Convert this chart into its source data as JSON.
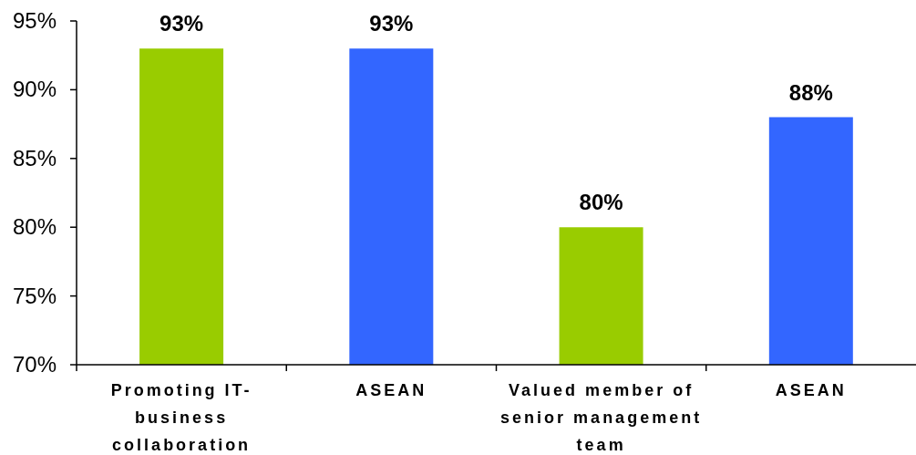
{
  "chart_data": {
    "type": "bar",
    "categories": [
      "Promoting IT-business collaboration",
      "ASEAN",
      "Valued member of senior management team",
      "ASEAN"
    ],
    "values": [
      93,
      93,
      80,
      88
    ],
    "colors": [
      "#99cc00",
      "#3366ff",
      "#99cc00",
      "#3366ff"
    ],
    "ylim": [
      70,
      95
    ],
    "yticks": [
      {
        "value": 70,
        "label": "70%"
      },
      {
        "value": 75,
        "label": "75%"
      },
      {
        "value": 80,
        "label": "80%"
      },
      {
        "value": 85,
        "label": "85%"
      },
      {
        "value": 90,
        "label": "90%"
      },
      {
        "value": 95,
        "label": "95%"
      }
    ],
    "value_labels": [
      "93%",
      "93%",
      "80%",
      "88%"
    ]
  }
}
